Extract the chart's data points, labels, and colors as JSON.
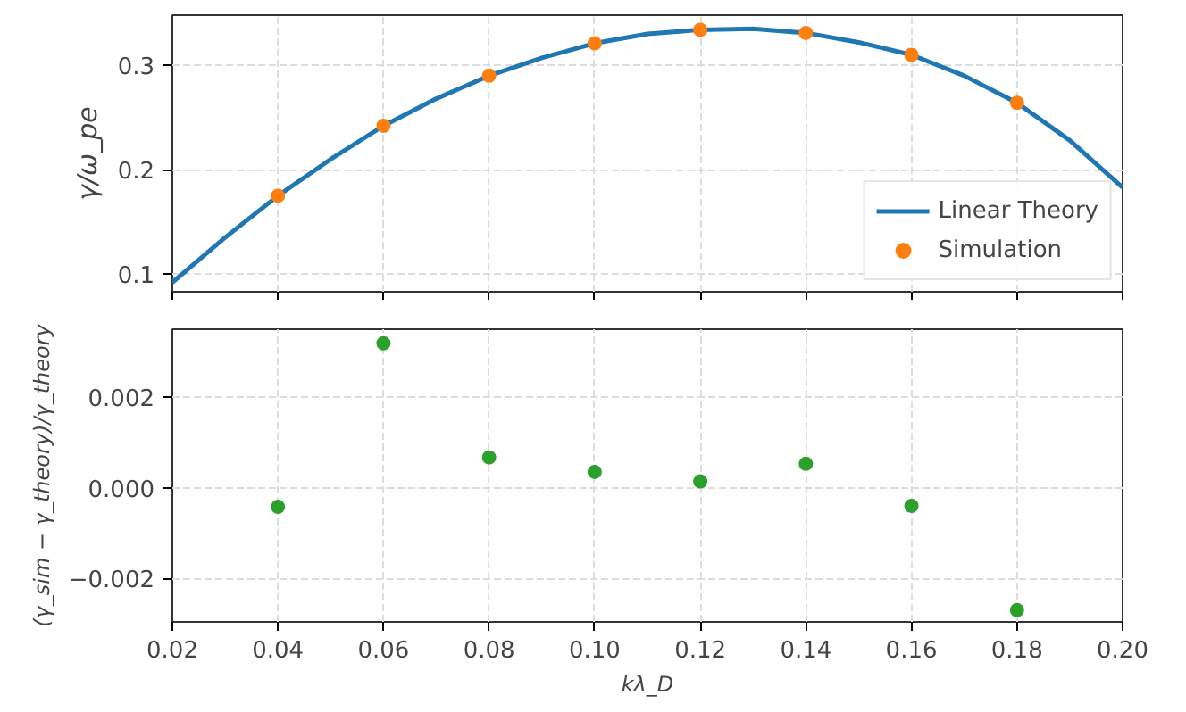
{
  "chart_data": [
    {
      "type": "line",
      "ylabel": "γ/ω_pe",
      "xlim": [
        0.02,
        0.2
      ],
      "xticks": [
        0.02,
        0.04,
        0.06,
        0.08,
        0.1,
        0.12,
        0.14,
        0.16,
        0.18,
        0.2
      ],
      "ylim": [
        0.083,
        0.348
      ],
      "yticks": [
        0.1,
        0.2,
        0.3
      ],
      "tick_labels": "y",
      "grid": true,
      "legend": "bottom right",
      "series": [
        {
          "name": "Linear Theory",
          "type": "line",
          "color": "#1f77b4",
          "marker": "none",
          "line_style": "solid",
          "x": [
            0.02,
            0.03,
            0.04,
            0.05,
            0.06,
            0.07,
            0.08,
            0.09,
            0.1,
            0.11,
            0.12,
            0.13,
            0.14,
            0.15,
            0.16,
            0.17,
            0.18,
            0.19,
            0.2
          ],
          "values": [
            0.092,
            0.135,
            0.175,
            0.21,
            0.242,
            0.268,
            0.29,
            0.307,
            0.321,
            0.33,
            0.334,
            0.335,
            0.331,
            0.322,
            0.31,
            0.29,
            0.264,
            0.228,
            0.183
          ]
        },
        {
          "name": "Simulation",
          "type": "scatter",
          "color": "#ff7f0e",
          "marker": "circle",
          "x": [
            0.04,
            0.06,
            0.08,
            0.1,
            0.12,
            0.14,
            0.16,
            0.18
          ],
          "values": [
            0.175,
            0.242,
            0.29,
            0.321,
            0.334,
            0.331,
            0.31,
            0.264
          ]
        }
      ]
    },
    {
      "type": "scatter",
      "xlabel": "kλ_D",
      "ylabel": "(γ_sim − γ_theory)/γ_theory",
      "xlim": [
        0.02,
        0.2
      ],
      "xticks": [
        0.02,
        0.04,
        0.06,
        0.08,
        {
          "value": 0.1,
          "label": "0.10"
        },
        0.12,
        0.14,
        0.16,
        0.18,
        {
          "value": 0.2,
          "label": "0.20"
        }
      ],
      "ylim": [
        -0.00296,
        0.0035
      ],
      "yticks": [
        {
          "value": -0.002,
          "label": "−0.002"
        },
        {
          "value": 0,
          "label": "0.000"
        },
        0.002
      ],
      "grid": true,
      "marker": "circle",
      "x": [
        0.04,
        0.06,
        0.08,
        0.1,
        0.12,
        0.14,
        0.16,
        0.18
      ],
      "series": [
        {
          "color": "#2ca02c",
          "values": [
            -0.00042,
            0.00319,
            0.00067,
            0.00035,
            0.00014,
            0.00053,
            -0.0004,
            -0.0027
          ]
        }
      ]
    }
  ]
}
